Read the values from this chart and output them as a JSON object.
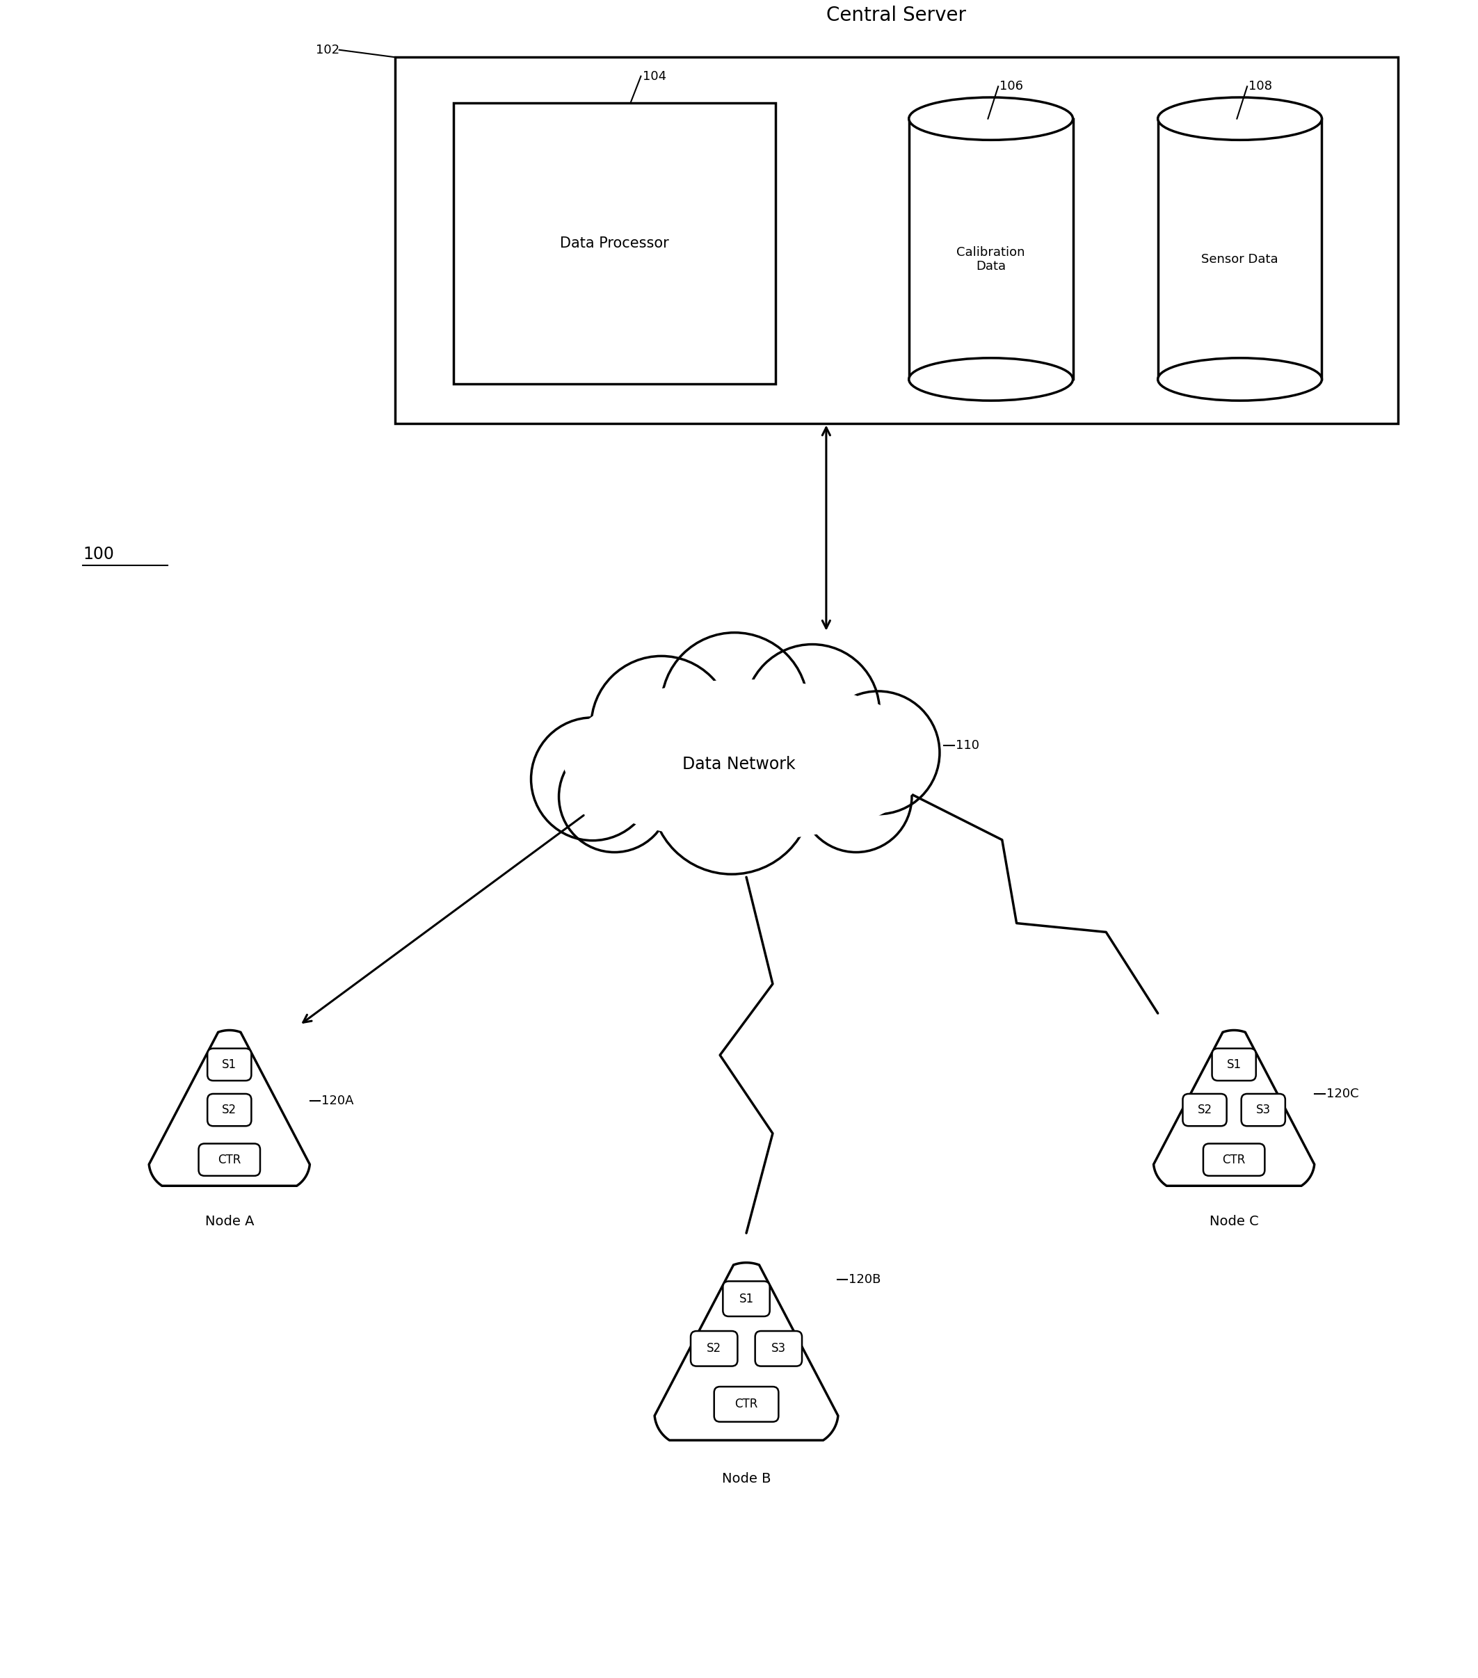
{
  "background_color": "#ffffff",
  "title_text": "Central Server",
  "label_100": "100",
  "label_102": "102",
  "label_104": "104",
  "label_106": "106",
  "label_108": "108",
  "label_110": "110",
  "label_120A": "120A",
  "label_120B": "120B",
  "label_120C": "120C",
  "node_a_label": "Node A",
  "node_b_label": "Node B",
  "node_c_label": "Node C",
  "data_network_label": "Data Network",
  "data_processor_label": "Data Processor",
  "calibration_data_label": "Calibration\nData",
  "sensor_data_label": "Sensor Data",
  "line_color": "#000000",
  "text_color": "#000000",
  "font_size_title": 20,
  "font_size_large": 17,
  "font_size_medium": 15,
  "font_size_small": 13,
  "font_size_node": 14,
  "font_size_sensor": 12
}
